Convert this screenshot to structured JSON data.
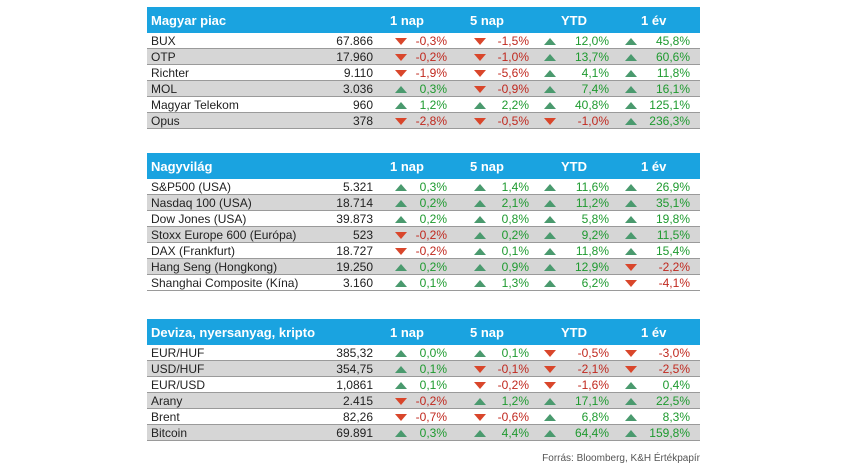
{
  "columns": [
    "1 nap",
    "5 nap",
    "YTD",
    "1 év"
  ],
  "sections": [
    {
      "title": "Magyar piac",
      "rows": [
        {
          "name": "BUX",
          "value": "67.866",
          "c": [
            [
              "down",
              "-0,3%"
            ],
            [
              "down",
              "-1,5%"
            ],
            [
              "up",
              "12,0%"
            ],
            [
              "up",
              "45,8%"
            ]
          ]
        },
        {
          "name": "OTP",
          "value": "17.960",
          "c": [
            [
              "down",
              "-0,2%"
            ],
            [
              "down",
              "-1,0%"
            ],
            [
              "up",
              "13,7%"
            ],
            [
              "up",
              "60,6%"
            ]
          ]
        },
        {
          "name": "Richter",
          "value": "9.110",
          "c": [
            [
              "down",
              "-1,9%"
            ],
            [
              "down",
              "-5,6%"
            ],
            [
              "up",
              "4,1%"
            ],
            [
              "up",
              "11,8%"
            ]
          ]
        },
        {
          "name": "MOL",
          "value": "3.036",
          "c": [
            [
              "up",
              "0,3%"
            ],
            [
              "down",
              "-0,9%"
            ],
            [
              "up",
              "7,4%"
            ],
            [
              "up",
              "16,1%"
            ]
          ]
        },
        {
          "name": "Magyar Telekom",
          "value": "960",
          "c": [
            [
              "up",
              "1,2%"
            ],
            [
              "up",
              "2,2%"
            ],
            [
              "up",
              "40,8%"
            ],
            [
              "up",
              "125,1%"
            ]
          ]
        },
        {
          "name": "Opus",
          "value": "378",
          "c": [
            [
              "down",
              "-2,8%"
            ],
            [
              "down",
              "-0,5%"
            ],
            [
              "down",
              "-1,0%"
            ],
            [
              "up",
              "236,3%"
            ]
          ]
        }
      ]
    },
    {
      "title": "Nagyvilág",
      "rows": [
        {
          "name": "S&P500 (USA)",
          "value": "5.321",
          "c": [
            [
              "up",
              "0,3%"
            ],
            [
              "up",
              "1,4%"
            ],
            [
              "up",
              "11,6%"
            ],
            [
              "up",
              "26,9%"
            ]
          ]
        },
        {
          "name": "Nasdaq 100 (USA)",
          "value": "18.714",
          "c": [
            [
              "up",
              "0,2%"
            ],
            [
              "up",
              "2,1%"
            ],
            [
              "up",
              "11,2%"
            ],
            [
              "up",
              "35,1%"
            ]
          ]
        },
        {
          "name": "Dow Jones (USA)",
          "value": "39.873",
          "c": [
            [
              "up",
              "0,2%"
            ],
            [
              "up",
              "0,8%"
            ],
            [
              "up",
              "5,8%"
            ],
            [
              "up",
              "19,8%"
            ]
          ]
        },
        {
          "name": "Stoxx Europe 600 (Európa)",
          "value": "523",
          "c": [
            [
              "down",
              "-0,2%"
            ],
            [
              "up",
              "0,2%"
            ],
            [
              "up",
              "9,2%"
            ],
            [
              "up",
              "11,5%"
            ]
          ]
        },
        {
          "name": "DAX (Frankfurt)",
          "value": "18.727",
          "c": [
            [
              "down",
              "-0,2%"
            ],
            [
              "up",
              "0,1%"
            ],
            [
              "up",
              "11,8%"
            ],
            [
              "up",
              "15,4%"
            ]
          ]
        },
        {
          "name": "Hang Seng (Hongkong)",
          "value": "19.250",
          "c": [
            [
              "up",
              "0,2%"
            ],
            [
              "up",
              "0,9%"
            ],
            [
              "up",
              "12,9%"
            ],
            [
              "down",
              "-2,2%"
            ]
          ]
        },
        {
          "name": "Shanghai Composite (Kína)",
          "value": "3.160",
          "c": [
            [
              "up",
              "0,1%"
            ],
            [
              "up",
              "1,3%"
            ],
            [
              "up",
              "6,2%"
            ],
            [
              "down",
              "-4,1%"
            ]
          ]
        }
      ]
    },
    {
      "title": "Deviza, nyersanyag, kripto",
      "rows": [
        {
          "name": "EUR/HUF",
          "value": "385,32",
          "c": [
            [
              "up",
              "0,0%"
            ],
            [
              "up",
              "0,1%"
            ],
            [
              "down",
              "-0,5%"
            ],
            [
              "down",
              "-3,0%"
            ]
          ]
        },
        {
          "name": "USD/HUF",
          "value": "354,75",
          "c": [
            [
              "up",
              "0,1%"
            ],
            [
              "down",
              "-0,1%"
            ],
            [
              "down",
              "-2,1%"
            ],
            [
              "down",
              "-2,5%"
            ]
          ]
        },
        {
          "name": "EUR/USD",
          "value": "1,0861",
          "c": [
            [
              "up",
              "0,1%"
            ],
            [
              "down",
              "-0,2%"
            ],
            [
              "down",
              "-1,6%"
            ],
            [
              "up",
              "0,4%"
            ]
          ]
        },
        {
          "name": "Arany",
          "value": "2.415",
          "c": [
            [
              "down",
              "-0,2%"
            ],
            [
              "up",
              "1,2%"
            ],
            [
              "up",
              "17,1%"
            ],
            [
              "up",
              "22,5%"
            ]
          ]
        },
        {
          "name": "Brent",
          "value": "82,26",
          "c": [
            [
              "down",
              "-0,7%"
            ],
            [
              "down",
              "-0,6%"
            ],
            [
              "up",
              "6,8%"
            ],
            [
              "up",
              "8,3%"
            ]
          ]
        },
        {
          "name": "Bitcoin",
          "value": "69.891",
          "c": [
            [
              "up",
              "0,3%"
            ],
            [
              "up",
              "4,4%"
            ],
            [
              "up",
              "64,4%"
            ],
            [
              "up",
              "159,8%"
            ]
          ]
        }
      ]
    }
  ],
  "footer": "Forrás: Bloomberg, K&H Értékpapír",
  "colors": {
    "header": "#1aa3e0",
    "up": "#1e9a2f",
    "down": "#c0281e",
    "up_arrow": "#4a9a6e",
    "down_arrow": "#d9462b"
  }
}
